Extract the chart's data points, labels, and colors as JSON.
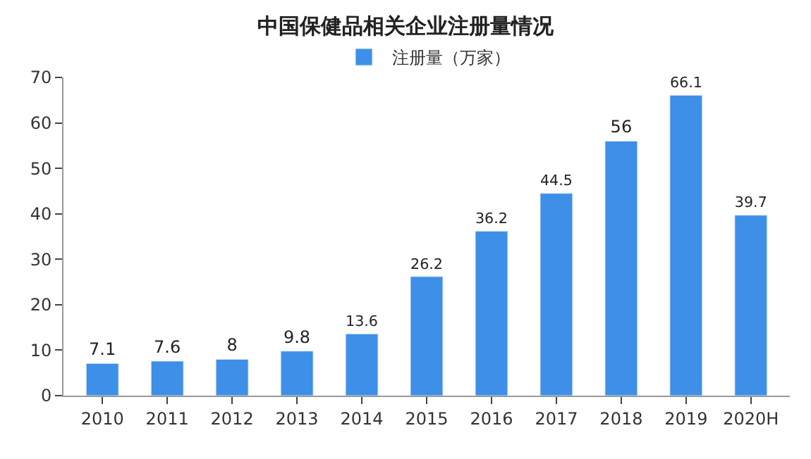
{
  "chart_data": {
    "type": "bar",
    "title": "中国保健品相关企业注册量情况",
    "categories": [
      "2010",
      "2011",
      "2012",
      "2013",
      "2014",
      "2015",
      "2016",
      "2017",
      "2018",
      "2019",
      "2020H"
    ],
    "series": [
      {
        "name": "注册量（万家）",
        "color": "#3d8fe8",
        "values": [
          7.1,
          7.6,
          8,
          9.8,
          13.6,
          26.2,
          36.2,
          44.5,
          56,
          66.1,
          39.7
        ]
      }
    ],
    "ylim": [
      0,
      70
    ],
    "yticks": [
      0,
      10,
      20,
      30,
      40,
      50,
      60,
      70
    ],
    "data_labels": true,
    "legend": "top"
  }
}
